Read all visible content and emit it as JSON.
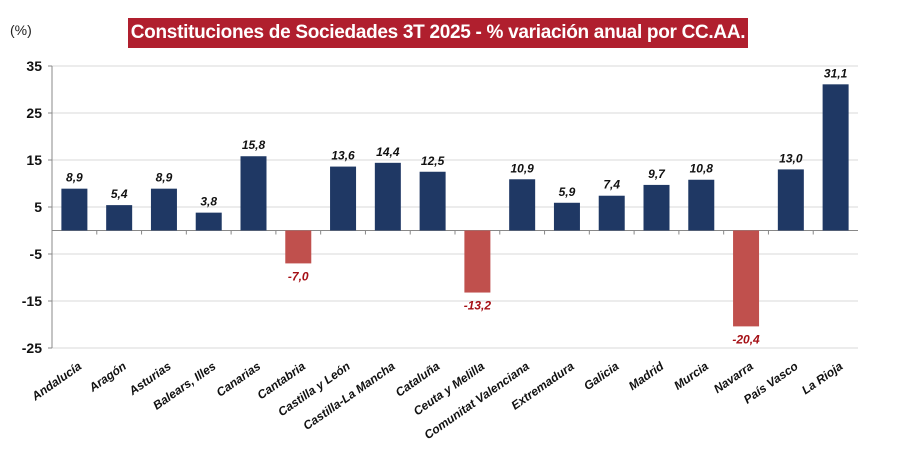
{
  "chart_data": {
    "type": "bar",
    "title": "Constituciones de Sociedades 3T 2025 - % variación anual por CC.AA.",
    "ylabel": "(%)",
    "xlabel": "",
    "ylim": [
      -25,
      35
    ],
    "yticks": [
      35,
      25,
      15,
      5,
      -5,
      -15,
      -25
    ],
    "grid": true,
    "categories": [
      "Andalucía",
      "Aragón",
      "Asturias",
      "Balears, Illes",
      "Canarias",
      "Cantabria",
      "Castilla y León",
      "Castilla-La Mancha",
      "Cataluña",
      "Ceuta y Melilla",
      "Comunitat Valenciana",
      "Extremadura",
      "Galicia",
      "Madrid",
      "Murcia",
      "Navarra",
      "País Vasco",
      "La Rioja"
    ],
    "values": [
      8.9,
      5.4,
      8.9,
      3.8,
      15.8,
      -7.0,
      13.6,
      14.4,
      12.5,
      -13.2,
      10.9,
      5.9,
      7.4,
      9.7,
      10.8,
      -20.4,
      13.0,
      31.1
    ],
    "data_labels": [
      "8,9",
      "5,4",
      "8,9",
      "3,8",
      "15,8",
      "-7,0",
      "13,6",
      "14,4",
      "12,5",
      "-13,2",
      "10,9",
      "5,9",
      "7,4",
      "9,7",
      "10,8",
      "-20,4",
      "13,0",
      "31,1"
    ],
    "colors": {
      "positive": "#1f3864",
      "negative": "#c0504d",
      "negative_label": "#a50f15",
      "title_bg": "#b01f2e"
    }
  }
}
